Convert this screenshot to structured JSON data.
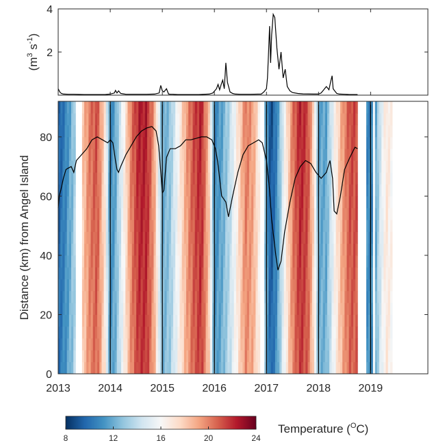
{
  "chart_data": [
    {
      "type": "line",
      "ylabel": "(m³ s⁻¹)",
      "ylabel_parts": {
        "open": "(m",
        "sup1": "3",
        "mid": " s",
        "sup2": "-1",
        "close": ")"
      },
      "xlim": [
        2013,
        2020.1
      ],
      "ylim": [
        0,
        4
      ],
      "yticks": [
        2,
        4
      ],
      "series": [
        {
          "x": [
            2013.0,
            2013.03,
            2013.06,
            2013.1,
            2013.2,
            2013.3,
            2013.5,
            2013.7,
            2013.9,
            2014.0,
            2014.08,
            2014.1,
            2014.13,
            2014.16,
            2014.2,
            2014.25,
            2014.3,
            2014.5,
            2014.7,
            2014.85,
            2014.94,
            2014.97,
            2015.0,
            2015.03,
            2015.08,
            2015.12,
            2015.16,
            2015.2,
            2015.3,
            2015.5,
            2015.7,
            2015.9,
            2015.97,
            2016.04,
            2016.07,
            2016.1,
            2016.13,
            2016.16,
            2016.19,
            2016.22,
            2016.25,
            2016.3,
            2016.35,
            2016.4,
            2016.5,
            2016.7,
            2016.9,
            2016.95,
            2017.0,
            2017.02,
            2017.04,
            2017.06,
            2017.08,
            2017.1,
            2017.13,
            2017.16,
            2017.2,
            2017.24,
            2017.28,
            2017.32,
            2017.36,
            2017.4,
            2017.45,
            2017.5,
            2017.6,
            2017.7,
            2017.9,
            2018.0,
            2018.05,
            2018.1,
            2018.15,
            2018.2,
            2018.23,
            2018.26,
            2018.28,
            2018.31,
            2018.35,
            2018.4,
            2018.5,
            2018.6,
            2018.7,
            2018.75
          ],
          "y": [
            0.3,
            0.15,
            0.08,
            0.05,
            0.04,
            0.04,
            0.03,
            0.03,
            0.03,
            0.05,
            0.1,
            0.22,
            0.1,
            0.2,
            0.08,
            0.06,
            0.04,
            0.04,
            0.04,
            0.05,
            0.1,
            0.45,
            0.2,
            0.15,
            0.3,
            0.05,
            0.04,
            0.04,
            0.03,
            0.03,
            0.03,
            0.05,
            0.1,
            0.3,
            0.5,
            0.25,
            0.5,
            0.7,
            0.3,
            1.5,
            0.6,
            0.15,
            0.08,
            0.05,
            0.04,
            0.04,
            0.05,
            0.15,
            0.3,
            0.8,
            2.0,
            3.2,
            1.5,
            2.8,
            3.75,
            3.6,
            2.2,
            1.2,
            2.0,
            0.8,
            1.2,
            0.4,
            0.2,
            0.12,
            0.08,
            0.06,
            0.05,
            0.05,
            0.1,
            0.25,
            0.4,
            0.25,
            0.6,
            0.9,
            0.3,
            0.2,
            0.08,
            0.05,
            0.04,
            0.03,
            0.03,
            0.03
          ]
        }
      ]
    },
    {
      "type": "heatmap",
      "ylabel": "Distance (km) from Angel Island",
      "xlim": [
        2013,
        2020.1
      ],
      "ylim": [
        0,
        92
      ],
      "xticks": [
        "2013",
        "2014",
        "2015",
        "2016",
        "2017",
        "2018",
        "2019"
      ],
      "yticks": [
        0,
        20,
        40,
        60,
        80
      ],
      "colorbar": {
        "label": "Temperature (°C)",
        "label_parts": {
          "text": "Temperature (",
          "sup": "O",
          "unit": "C)"
        },
        "range": [
          8,
          24
        ],
        "ticks": [
          "8",
          "12",
          "16",
          "20",
          "24"
        ],
        "colors": [
          "#053061",
          "#2166ac",
          "#4393c3",
          "#92c5de",
          "#d1e5f0",
          "#f7f7f7",
          "#fddbc7",
          "#f4a582",
          "#d6604d",
          "#b2182b",
          "#67001f"
        ]
      },
      "gaps": [
        [
          2013.33,
          2013.47
        ],
        [
          2016.88,
          2016.97
        ],
        [
          2018.75,
          2018.93
        ],
        [
          2019.04,
          2019.1
        ],
        [
          2019.43,
          2020.1
        ]
      ],
      "vertical_lines": [
        2014.0,
        2015.0,
        2016.0,
        2017.0,
        2018.0,
        2019.0
      ],
      "temperature_anchors": {
        "x": [
          2013.0,
          2013.15,
          2013.3,
          2013.47,
          2013.6,
          2013.75,
          2013.9,
          2014.0,
          2014.1,
          2014.25,
          2014.4,
          2014.55,
          2014.7,
          2014.85,
          2015.0,
          2015.15,
          2015.3,
          2015.45,
          2015.6,
          2015.75,
          2015.9,
          2016.0,
          2016.15,
          2016.3,
          2016.45,
          2016.6,
          2016.75,
          2016.88,
          2016.97,
          2017.08,
          2017.2,
          2017.35,
          2017.5,
          2017.65,
          2017.8,
          2017.92,
          2018.0,
          2018.15,
          2018.3,
          2018.45,
          2018.6,
          2018.75,
          2018.93,
          2019.04,
          2019.1,
          2019.2,
          2019.3,
          2019.43
        ],
        "t": [
          9.5,
          11,
          13,
          18,
          20,
          21,
          17,
          11,
          12,
          16,
          20,
          22,
          22,
          19,
          12,
          13,
          16,
          19,
          21,
          22,
          18,
          11,
          12,
          14,
          17,
          20,
          19,
          16,
          13,
          9,
          11,
          16,
          20,
          22,
          21,
          17,
          12,
          12,
          16,
          19,
          21,
          21,
          11,
          11,
          12,
          15,
          17,
          16
        ]
      },
      "line_series": {
        "name": "",
        "x": [
          2013.0,
          2013.02,
          2013.05,
          2013.1,
          2013.15,
          2013.2,
          2013.25,
          2013.3,
          2013.35,
          2013.45,
          2013.55,
          2013.65,
          2013.7,
          2013.75,
          2013.85,
          2013.95,
          2014.0,
          2014.05,
          2014.1,
          2014.13,
          2014.16,
          2014.2,
          2014.3,
          2014.4,
          2014.5,
          2014.6,
          2014.7,
          2014.8,
          2014.88,
          2014.93,
          2014.98,
          2015.0,
          2015.03,
          2015.08,
          2015.15,
          2015.25,
          2015.35,
          2015.45,
          2015.55,
          2015.65,
          2015.75,
          2015.85,
          2015.95,
          2016.02,
          2016.06,
          2016.1,
          2016.14,
          2016.18,
          2016.22,
          2016.27,
          2016.35,
          2016.45,
          2016.55,
          2016.65,
          2016.75,
          2016.85,
          2016.92,
          2017.0,
          2017.06,
          2017.1,
          2017.14,
          2017.18,
          2017.22,
          2017.28,
          2017.35,
          2017.45,
          2017.55,
          2017.65,
          2017.75,
          2017.85,
          2017.95,
          2018.05,
          2018.15,
          2018.22,
          2018.27,
          2018.3,
          2018.35,
          2018.42,
          2018.5,
          2018.6,
          2018.7,
          2018.75
        ],
        "y": [
          56,
          60,
          62,
          66,
          69,
          69.5,
          70,
          68,
          72,
          74,
          76,
          79,
          79.5,
          80,
          79,
          78,
          79,
          78,
          72,
          69,
          68,
          70,
          74,
          77,
          80,
          82,
          83,
          83.5,
          82,
          77,
          66,
          61,
          62,
          73,
          76,
          76,
          77,
          79,
          79,
          79.5,
          80,
          80,
          79,
          76,
          72,
          66,
          60,
          59,
          58,
          53,
          60,
          68,
          74,
          77,
          78,
          79,
          78,
          72,
          62,
          52,
          46,
          40,
          35,
          38,
          48,
          58,
          66,
          70,
          72,
          71,
          68,
          66,
          68,
          72,
          66,
          55,
          54,
          60,
          69,
          73,
          76.5,
          76
        ]
      }
    }
  ]
}
